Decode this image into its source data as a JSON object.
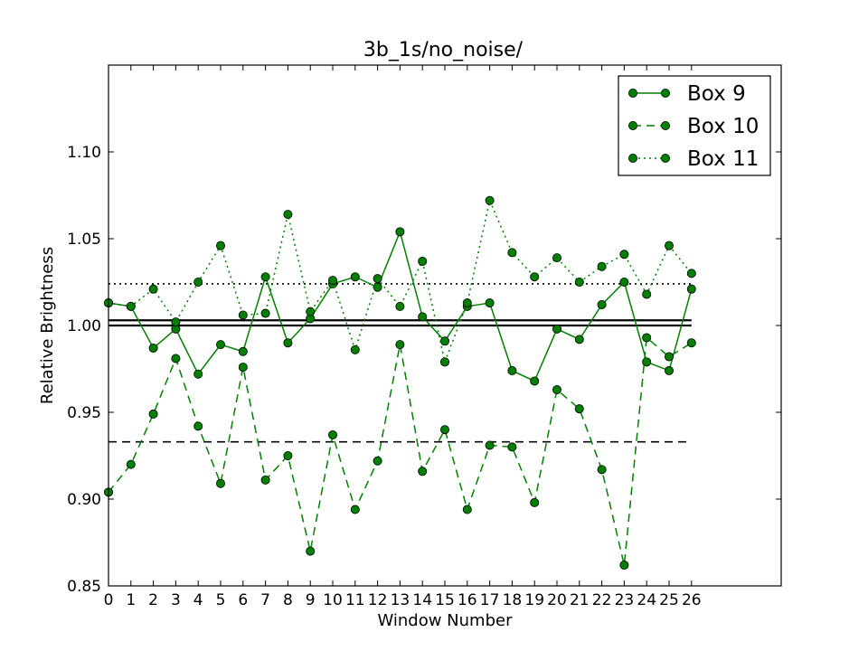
{
  "chart_data": {
    "type": "line",
    "title": "3b_1s/no_noise/",
    "xlabel": "Window Number",
    "ylabel": "Relative Brightness",
    "xlim": [
      0,
      30
    ],
    "ylim": [
      0.85,
      1.15
    ],
    "xticks": [
      "0",
      "1",
      "2",
      "3",
      "4",
      "5",
      "6",
      "7",
      "8",
      "9",
      "10",
      "11",
      "12",
      "13",
      "14",
      "15",
      "16",
      "17",
      "18",
      "19",
      "20",
      "21",
      "22",
      "23",
      "24",
      "25",
      "26"
    ],
    "yticks": [
      "0.85",
      "0.90",
      "0.95",
      "1.00",
      "1.05",
      "1.10"
    ],
    "grid": false,
    "legend_position": "top-right",
    "color": "#007f00",
    "x": [
      0,
      1,
      2,
      3,
      4,
      5,
      6,
      7,
      8,
      9,
      10,
      11,
      12,
      13,
      14,
      15,
      16,
      17,
      18,
      19,
      20,
      21,
      22,
      23,
      24,
      25,
      26
    ],
    "series": [
      {
        "name": "Box 9",
        "linestyle": "solid",
        "values": [
          1.013,
          1.011,
          0.987,
          0.998,
          0.972,
          0.989,
          0.985,
          1.028,
          0.99,
          1.004,
          1.024,
          1.028,
          1.022,
          1.054,
          1.005,
          0.991,
          1.011,
          1.013,
          0.974,
          0.968,
          0.998,
          0.992,
          1.012,
          1.025,
          0.979,
          0.974,
          1.021
        ]
      },
      {
        "name": "Box 10",
        "linestyle": "dashed",
        "values": [
          0.904,
          0.92,
          0.949,
          0.981,
          0.942,
          0.909,
          0.976,
          0.911,
          0.925,
          0.87,
          0.937,
          0.894,
          0.922,
          0.989,
          0.916,
          0.94,
          0.894,
          0.931,
          0.93,
          0.898,
          0.963,
          0.952,
          0.917,
          0.862,
          0.993,
          0.982,
          0.99
        ]
      },
      {
        "name": "Box 11",
        "linestyle": "dotted",
        "values": [
          1.013,
          1.011,
          1.021,
          1.002,
          1.025,
          1.046,
          1.006,
          1.007,
          1.064,
          1.008,
          1.026,
          0.986,
          1.027,
          1.011,
          1.037,
          0.979,
          1.013,
          1.072,
          1.042,
          1.028,
          1.039,
          1.025,
          1.034,
          1.041,
          1.018,
          1.046,
          1.03
        ]
      }
    ],
    "reference_lines": [
      {
        "y": 1.0,
        "linestyle": "solid",
        "color": "#000000",
        "x_range": [
          0,
          26
        ]
      },
      {
        "y": 1.003,
        "linestyle": "solid",
        "color": "#000000",
        "x_range": [
          0,
          26
        ]
      },
      {
        "y": 0.933,
        "linestyle": "dashed",
        "color": "#000000",
        "x_range": [
          0,
          26
        ]
      },
      {
        "y": 1.024,
        "linestyle": "dotted",
        "color": "#000000",
        "x_range": [
          0,
          26
        ]
      }
    ]
  }
}
